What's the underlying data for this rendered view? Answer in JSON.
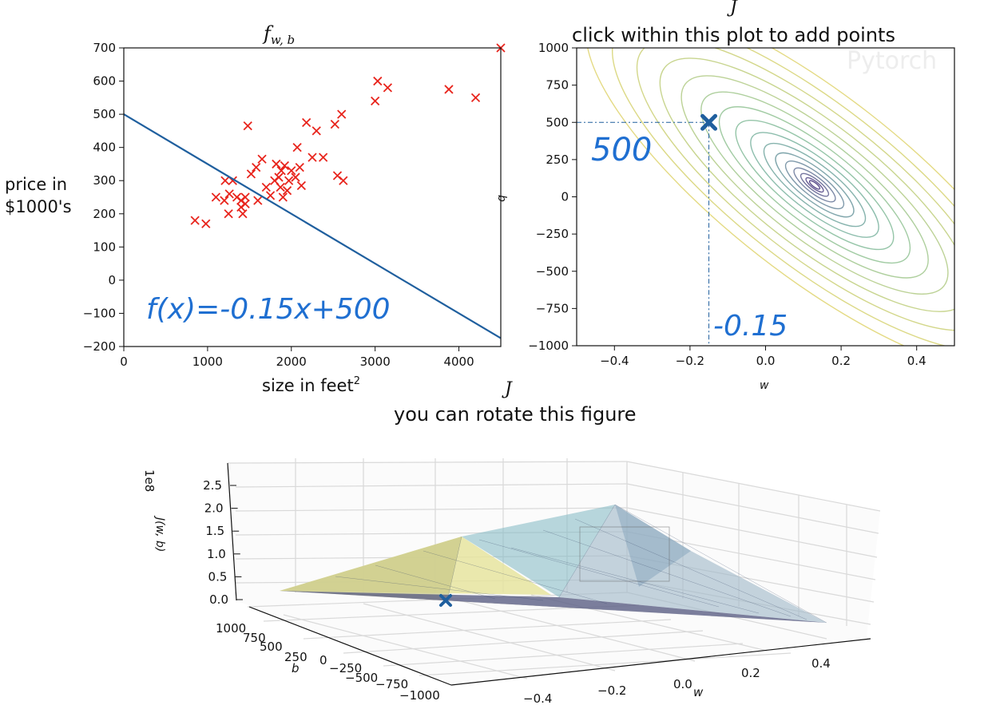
{
  "chart_data": [
    {
      "type": "scatter",
      "title": "f",
      "title_sub": "w, b",
      "xlabel": "size in feet",
      "xlabel_sup": "2",
      "ylabel_line1": "price in",
      "ylabel_line2": "$1000's",
      "xlim": [
        0,
        4500
      ],
      "ylim": [
        -200,
        700
      ],
      "xticks": [
        "0",
        "1000",
        "2000",
        "3000",
        "4000"
      ],
      "yticks": [
        "700",
        "600",
        "500",
        "400",
        "300",
        "200",
        "100",
        "0",
        "−100",
        "−200"
      ],
      "marker": "x",
      "marker_color": "#e8241c",
      "line_color": "#1f5f9e",
      "points": [
        [
          850,
          180
        ],
        [
          980,
          170
        ],
        [
          1100,
          250
        ],
        [
          1200,
          240
        ],
        [
          1210,
          300
        ],
        [
          1250,
          200
        ],
        [
          1260,
          260
        ],
        [
          1300,
          300
        ],
        [
          1350,
          250
        ],
        [
          1400,
          240
        ],
        [
          1400,
          220
        ],
        [
          1420,
          200
        ],
        [
          1450,
          250
        ],
        [
          1450,
          230
        ],
        [
          1480,
          465
        ],
        [
          1520,
          320
        ],
        [
          1580,
          340
        ],
        [
          1600,
          240
        ],
        [
          1650,
          365
        ],
        [
          1700,
          280
        ],
        [
          1750,
          255
        ],
        [
          1800,
          300
        ],
        [
          1820,
          350
        ],
        [
          1850,
          310
        ],
        [
          1870,
          280
        ],
        [
          1880,
          330
        ],
        [
          1900,
          250
        ],
        [
          1920,
          345
        ],
        [
          1950,
          270
        ],
        [
          1970,
          300
        ],
        [
          2000,
          330
        ],
        [
          2050,
          310
        ],
        [
          2070,
          400
        ],
        [
          2100,
          340
        ],
        [
          2120,
          285
        ],
        [
          2180,
          475
        ],
        [
          2250,
          370
        ],
        [
          2300,
          450
        ],
        [
          2380,
          370
        ],
        [
          2520,
          470
        ],
        [
          2550,
          315
        ],
        [
          2600,
          500
        ],
        [
          2620,
          300
        ],
        [
          3000,
          540
        ],
        [
          3030,
          600
        ],
        [
          3150,
          580
        ],
        [
          3880,
          575
        ],
        [
          4200,
          550
        ],
        [
          4500,
          700
        ]
      ],
      "line": {
        "w": -0.15,
        "b": 500
      },
      "annotation": "f(x)=-0.15x+500"
    },
    {
      "type": "contour",
      "title_top": "J",
      "title": "click within this plot to add points",
      "xlabel": "w",
      "ylabel": "b",
      "xlim": [
        -0.5,
        0.5
      ],
      "ylim": [
        -1000,
        1000
      ],
      "xticks": [
        "−0.4",
        "−0.2",
        "0.0",
        "0.2",
        "0.4"
      ],
      "yticks": [
        "1000",
        "750",
        "500",
        "250",
        "0",
        "−250",
        "−500",
        "−750",
        "−1000"
      ],
      "center": {
        "w": 0.13,
        "b": 80
      },
      "marker_point": {
        "w": -0.15,
        "b": 500
      },
      "marker_color": "#1f5f9e",
      "annotation_b": "500",
      "annotation_w": "-0.15"
    },
    {
      "type": "surface3d",
      "title_top": "J",
      "title": "you can rotate this figure",
      "zlabel": "J(w, b)",
      "zscale": "1e8",
      "zticks": [
        "2.5",
        "2.0",
        "1.5",
        "1.0",
        "0.5",
        "0.0"
      ],
      "b_label": "b",
      "b_ticks": [
        "1000",
        "750",
        "500",
        "250",
        "0",
        "−250",
        "−500",
        "−750",
        "−1000"
      ],
      "w_label": "w",
      "w_ticks": [
        "−0.4",
        "−0.2",
        "0.0",
        "0.2",
        "0.4"
      ],
      "marker_color": "#1f5f9e"
    }
  ],
  "watermark": "Pytorch"
}
